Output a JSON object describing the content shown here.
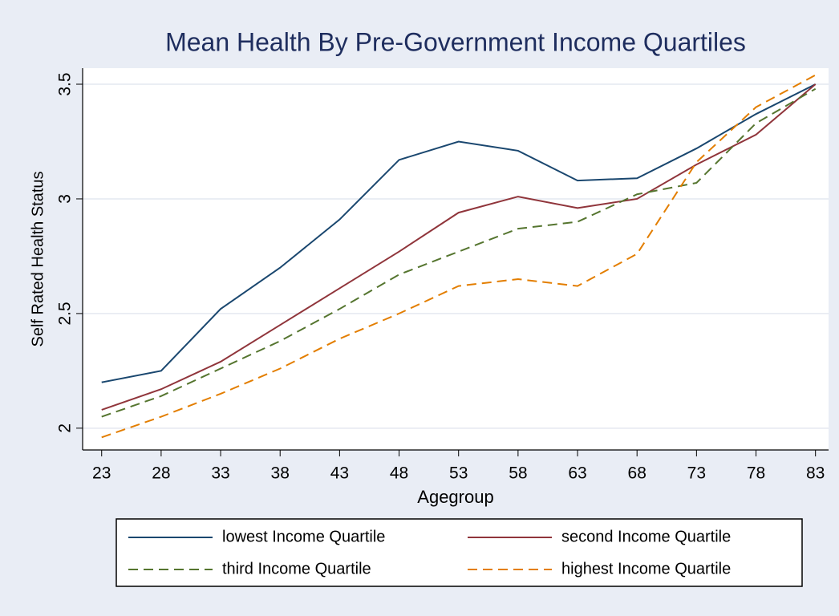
{
  "chart_data": {
    "type": "line",
    "title": "Mean Health By Pre-Government Income Quartiles",
    "xlabel": "Agegroup",
    "ylabel": "Self Rated Health Status",
    "x": [
      23,
      28,
      33,
      38,
      43,
      48,
      53,
      58,
      63,
      68,
      73,
      78,
      83
    ],
    "xlim": [
      21.4,
      84.1
    ],
    "xticks": [
      23,
      28,
      33,
      38,
      43,
      48,
      53,
      58,
      63,
      68,
      73,
      78,
      83
    ],
    "ylim": [
      1.905,
      3.57
    ],
    "yticks": [
      2,
      2.5,
      3,
      3.5
    ],
    "grid": true,
    "legend": "bottom",
    "series": [
      {
        "name": "lowest Income Quartile",
        "color": "#1a476f",
        "dash": "solid",
        "values": [
          2.2,
          2.25,
          2.52,
          2.7,
          2.91,
          3.17,
          3.25,
          3.21,
          3.08,
          3.09,
          3.22,
          3.37,
          3.5
        ]
      },
      {
        "name": "second Income Quartile",
        "color": "#90353b",
        "dash": "solid",
        "values": [
          2.08,
          2.17,
          2.29,
          2.45,
          2.61,
          2.77,
          2.94,
          3.01,
          2.96,
          3.0,
          3.15,
          3.28,
          3.5
        ]
      },
      {
        "name": "third Income Quartile",
        "color": "#55752f",
        "dash": "dashed",
        "values": [
          2.05,
          2.14,
          2.26,
          2.38,
          2.52,
          2.67,
          2.77,
          2.87,
          2.9,
          3.02,
          3.07,
          3.33,
          3.48
        ]
      },
      {
        "name": "highest Income Quartile",
        "color": "#e37e00",
        "dash": "dashed",
        "values": [
          1.96,
          2.05,
          2.15,
          2.26,
          2.39,
          2.5,
          2.62,
          2.65,
          2.62,
          2.76,
          3.16,
          3.4,
          3.54
        ]
      }
    ]
  }
}
